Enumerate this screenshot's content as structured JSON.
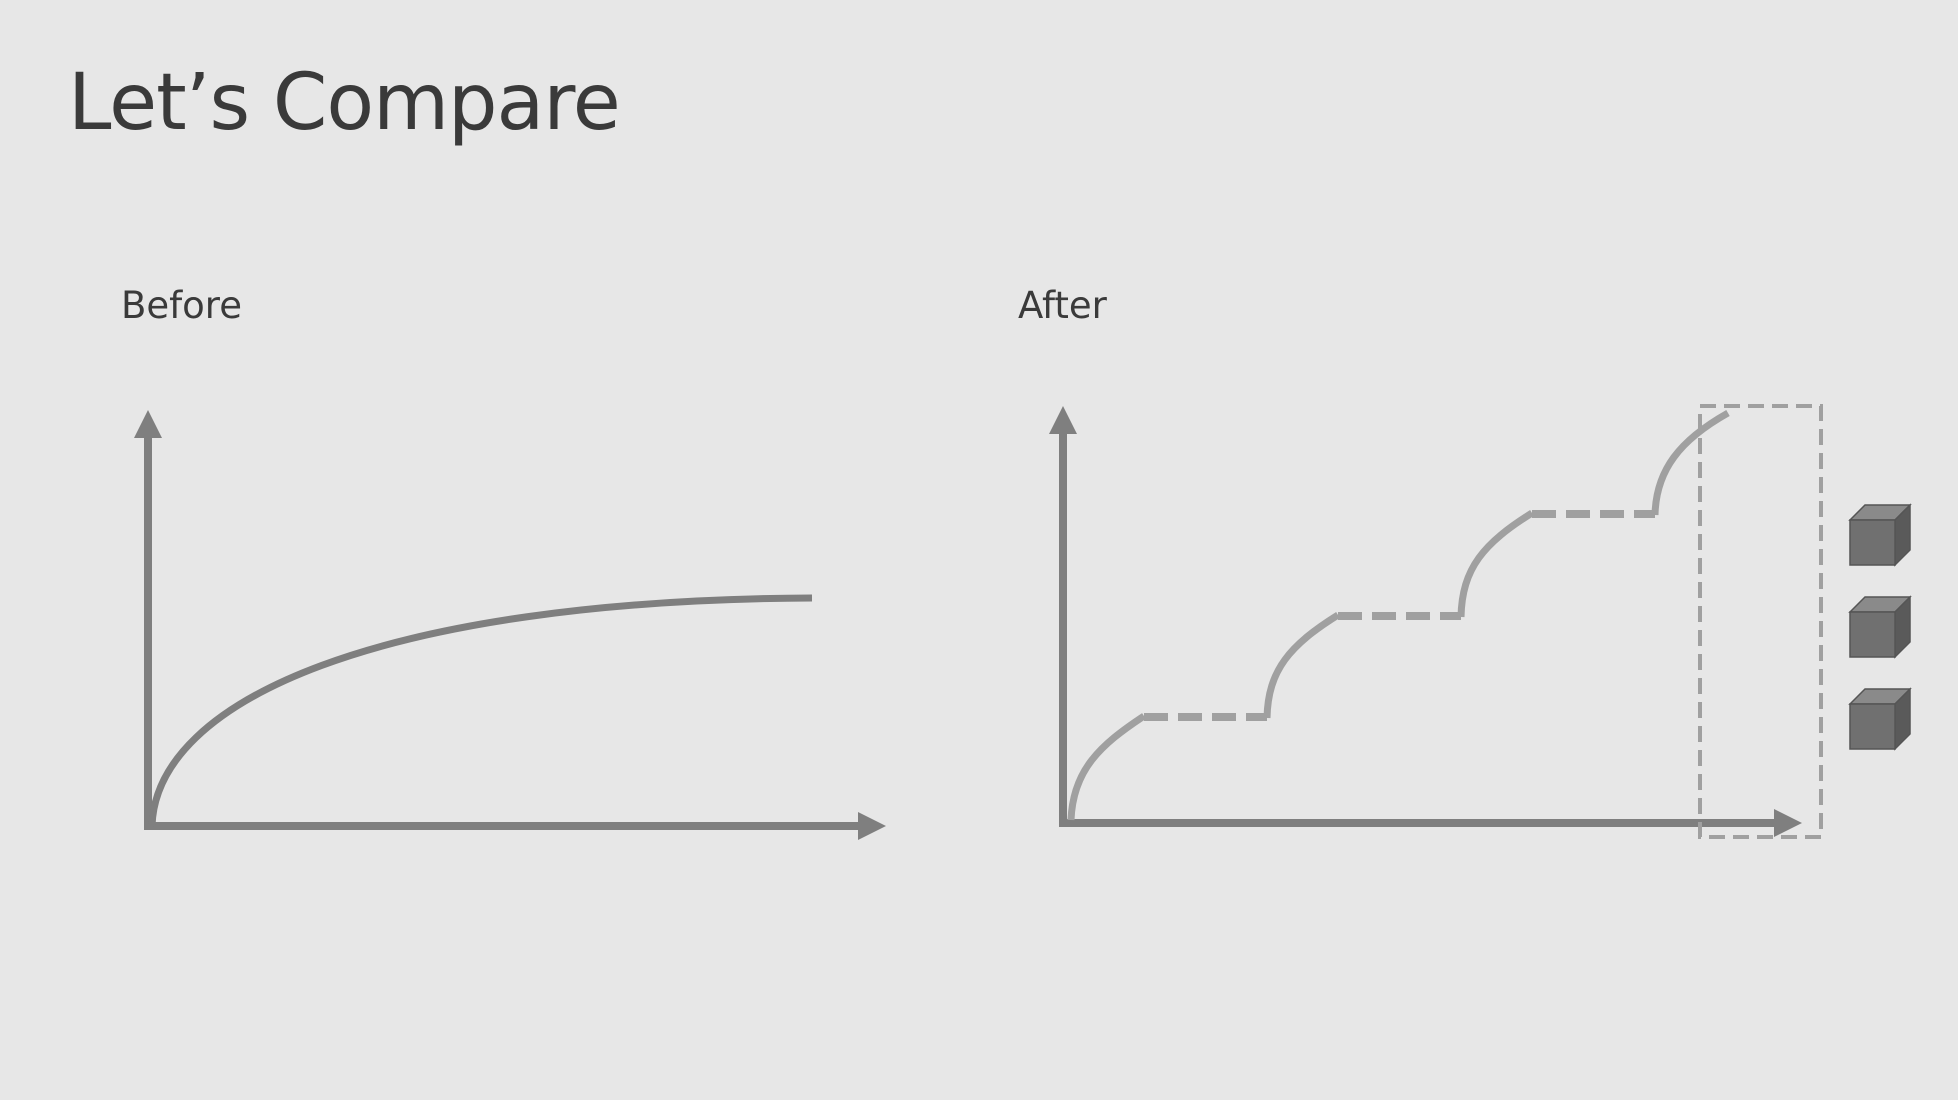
{
  "slide": {
    "title": "Let’s Compare",
    "panels": {
      "before": {
        "label": "Before"
      },
      "after": {
        "label": "After"
      }
    }
  },
  "colors": {
    "background": "#e7e7e7",
    "title_text": "#3a3a3a",
    "axis": "#7f7f7f",
    "before_curve": "#7f7f7f",
    "after_curve": "#a0a0a0",
    "cube_front": "#707070",
    "cube_top": "#8a8a8a",
    "cube_side": "#5a5a5a"
  },
  "icons": {
    "server_cubes": [
      "cube-icon",
      "cube-icon",
      "cube-icon"
    ]
  }
}
